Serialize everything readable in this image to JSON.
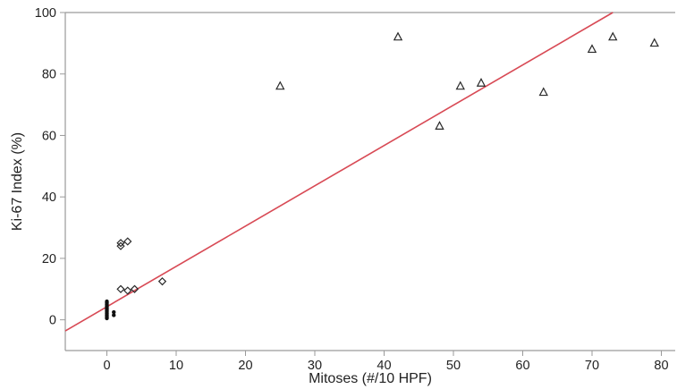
{
  "chart_data": {
    "type": "scatter",
    "title": "",
    "xlabel": "Mitoses (#/10 HPF)",
    "ylabel": "Ki-67 Index (%)",
    "xlim": [
      -6,
      82
    ],
    "ylim": [
      -10,
      100
    ],
    "x_ticks": [
      0,
      10,
      20,
      30,
      40,
      50,
      60,
      70,
      80
    ],
    "y_ticks": [
      0,
      20,
      40,
      60,
      80,
      100
    ],
    "grid": false,
    "colors": {
      "fit_line": "#d84a55",
      "markers": "#2a2a2a",
      "axis": "#9a9a9a"
    },
    "series": [
      {
        "marker": "triangle",
        "points": [
          [
            25,
            76
          ],
          [
            42,
            92
          ],
          [
            48,
            63
          ],
          [
            51,
            76
          ],
          [
            54,
            77
          ],
          [
            63,
            74
          ],
          [
            70,
            88
          ],
          [
            73,
            92
          ],
          [
            79,
            90
          ]
        ]
      },
      {
        "marker": "diamond",
        "points": [
          [
            2,
            25
          ],
          [
            2,
            24
          ],
          [
            3,
            25.5
          ],
          [
            2,
            10
          ],
          [
            3,
            9.5
          ],
          [
            4,
            10
          ],
          [
            8,
            12.5
          ]
        ]
      },
      {
        "marker": "dot",
        "points": [
          [
            0,
            0.5
          ],
          [
            0,
            1
          ],
          [
            0,
            1.5
          ],
          [
            0,
            2
          ],
          [
            0,
            2.5
          ],
          [
            0,
            3
          ],
          [
            0,
            3.5
          ],
          [
            0,
            4
          ],
          [
            0,
            4.5
          ],
          [
            0,
            5
          ],
          [
            0,
            5.5
          ],
          [
            0,
            6
          ],
          [
            1,
            1.5
          ],
          [
            1,
            2.5
          ]
        ]
      }
    ],
    "trendline": {
      "from": [
        -6,
        -3.6
      ],
      "to": [
        73,
        100
      ]
    }
  }
}
